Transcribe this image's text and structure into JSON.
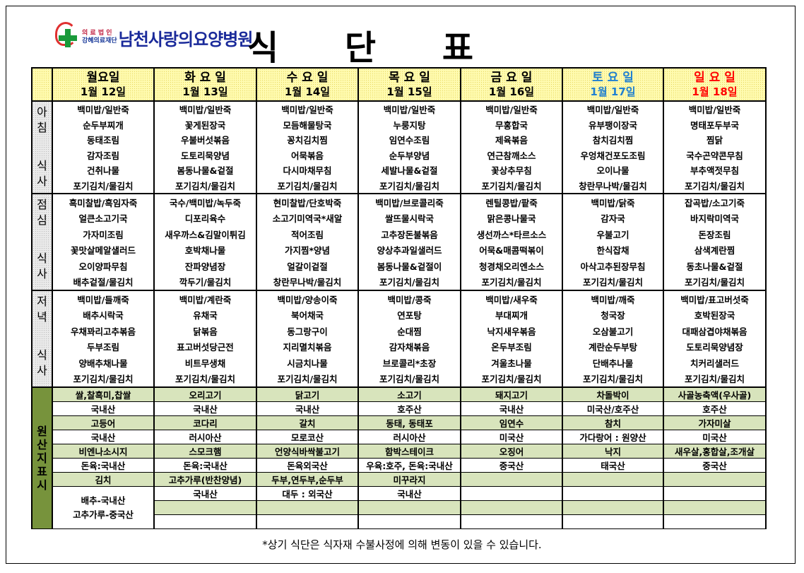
{
  "logo": {
    "line1": "의 료 법 인",
    "line2": "강혜의료재단",
    "name": "남천사랑의요양병원"
  },
  "title": [
    "식",
    "단",
    "표"
  ],
  "colors": {
    "saturday": "#1f7fd0",
    "sunday": "#ff0000",
    "weekday": "#000000",
    "origin_green": "#d8e4bc",
    "origin_label": "#77933c",
    "header_yellow": "#fffbb0"
  },
  "days": [
    {
      "name": "월요일",
      "date": "1월 12일",
      "color": "#000000"
    },
    {
      "name": "화 요 일",
      "date": "1월 13일",
      "color": "#000000"
    },
    {
      "name": "수 요 일",
      "date": "1월 14일",
      "color": "#000000"
    },
    {
      "name": "목 요 일",
      "date": "1월 15일",
      "color": "#000000"
    },
    {
      "name": "금 요 일",
      "date": "1월 16일",
      "color": "#000000"
    },
    {
      "name": "토 요 일",
      "date": "1월 17일",
      "color": "#1f7fd0"
    },
    {
      "name": "일 요 일",
      "date": "1월 18일",
      "color": "#ff0000"
    }
  ],
  "meals": [
    {
      "label_top": "아침",
      "label_bottom": "식사",
      "days": [
        [
          "백미밥/일반죽",
          "순두부찌개",
          "동태조림",
          "감자조림",
          "건취나물",
          "포기김치/물김치"
        ],
        [
          "백미밥/일반죽",
          "꽃게된장국",
          "우불버섯볶음",
          "도토리묵양념",
          "봄동나물&겉절",
          "포기김치/물김치"
        ],
        [
          "백미밥/일반죽",
          "모듬해물탕국",
          "꽁치김치찜",
          "어묵볶음",
          "다시마채무침",
          "포기김치/물김치"
        ],
        [
          "백미밥/일반죽",
          "누룽지탕",
          "임연수조림",
          "순두부양념",
          "세발나물&겉절",
          "포기김치/물김치"
        ],
        [
          "백미밥/일반죽",
          "무홍합국",
          "제육볶음",
          "연근참깨소스",
          "꽃상추무침",
          "포기김치/물김치"
        ],
        [
          "백미밥/일반죽",
          "유부팽이장국",
          "참치김치찜",
          "우엉채건포도조림",
          "오이나물",
          "창란무나박/물김치"
        ],
        [
          "백미밥/일반죽",
          "명태포두부국",
          "찜닭",
          "국수곤약콘무침",
          "부추액젓무침",
          "포기김치/물김치"
        ]
      ]
    },
    {
      "label_top": "점심",
      "label_bottom": "식사",
      "days": [
        [
          "흑미찰밥/흑임자죽",
          "얼큰소고기국",
          "가자미조림",
          "꽃맛살메알샐러드",
          "오이양파무침",
          "배추겉절/물김치"
        ],
        [
          "국수/백미밥/녹두죽",
          "디포리육수",
          "새우까스&김말이튀김",
          "호박채나물",
          "잔파양념장",
          "깍두기/물김치"
        ],
        [
          "현미찰밥/단호박죽",
          "소고기미역국*새알",
          "적어조림",
          "가지찜*양념",
          "얼갈이겉절",
          "창란무나박/물김치"
        ],
        [
          "백미밥/브로콜리죽",
          "쌀뜨물시락국",
          "고추장돈불볶음",
          "양상추과일샐러드",
          "봄동나물&겉절이",
          "포기김치/물김치"
        ],
        [
          "렌틸콩밥/팥죽",
          "맑은콩나물국",
          "생선까스*타르소스",
          "어묵&매콤떡볶이",
          "청경채오리엔소스",
          "포기김치/물김치"
        ],
        [
          "백미밥/닭죽",
          "감자국",
          "우불고기",
          "한식잡채",
          "아삭고추된장무침",
          "포기김치/물김치"
        ],
        [
          "잡곡밥/소고기죽",
          "바지락미역국",
          "돈장조림",
          "삼색계란찜",
          "동초나물&겉절",
          "포기김치/물김치"
        ]
      ]
    },
    {
      "label_top": "저녁",
      "label_bottom": "식사",
      "days": [
        [
          "백미밥/들깨죽",
          "배추시락국",
          "우채꽈리고추볶음",
          "두부조림",
          "양배추채나물",
          "포기김치/물김치"
        ],
        [
          "백미밥/계란죽",
          "유채국",
          "닭볶음",
          "표고버섯당근전",
          "비트무생채",
          "포기김치/물김치"
        ],
        [
          "백미밥/양송이죽",
          "북어채국",
          "동그랑구이",
          "지리멸치볶음",
          "시금치나물",
          "포기김치/물김치"
        ],
        [
          "백미밥/콩죽",
          "연포탕",
          "순대찜",
          "감자채볶음",
          "브로콜리*초장",
          "포기김치/물김치"
        ],
        [
          "백미밥/새우죽",
          "부대찌개",
          "낙지새우볶음",
          "온두부조림",
          "겨울초나물",
          "포기김치/물김치"
        ],
        [
          "백미밥/깨죽",
          "청국장",
          "오삼불고기",
          "계란순두부탕",
          "단배추나물",
          "포기김치/물김치"
        ],
        [
          "백미밥/표고버섯죽",
          "호박된장국",
          "대패삼겹야채볶음",
          "도토리묵양념장",
          "치커리샐러드",
          "포기김치/물김치"
        ]
      ]
    }
  ],
  "origin": {
    "label": "원산지표시",
    "kimchi_merged": [
      "배추-국내산",
      "고추가루-중국산"
    ],
    "pairs": [
      {
        "items": [
          "쌀,찰흑미,찹쌀",
          "오리고기",
          "닭고기",
          "소고기",
          "돼지고기",
          "차돌박이",
          "사골농축액(우사골)"
        ],
        "origins": [
          "국내산",
          "국내산",
          "국내산",
          "호주산",
          "국내산",
          "미국산/호주산",
          "호주산"
        ]
      },
      {
        "items": [
          "고등어",
          "코다리",
          "갈치",
          "동태, 동태포",
          "임연수",
          "참치",
          "가자미살"
        ],
        "origins": [
          "국내산",
          "러시아산",
          "모로코산",
          "러시아산",
          "미국산",
          "가다랑어 : 원양산",
          "미국산"
        ]
      },
      {
        "items": [
          "비엔나소시지",
          "스모크햄",
          "언양식바싹불고기",
          "함박스테이크",
          "오징어",
          "낙지",
          "새우살,홍합살,조개살"
        ],
        "origins": [
          "돈육:국내산",
          "돈육:국내산",
          "돈육외국산",
          "우육:호주, 돈육:국내산",
          "중국산",
          "태국산",
          "중국산"
        ]
      },
      {
        "items": [
          "김치",
          "고추가루(반찬양념)",
          "두부,연두부,순두부",
          "미꾸라지",
          "",
          "",
          ""
        ],
        "origins": [
          "",
          "국내산",
          "대두 : 외국산",
          "국내산",
          "",
          "",
          ""
        ]
      },
      {
        "items": [
          "",
          "",
          "",
          "",
          "",
          "",
          ""
        ],
        "origins": [
          "",
          "",
          "",
          "",
          "",
          "",
          ""
        ]
      }
    ]
  },
  "footnote": "*상기 식단은 식자재 수불사정에 의해 변동이 있을 수 있습니다."
}
